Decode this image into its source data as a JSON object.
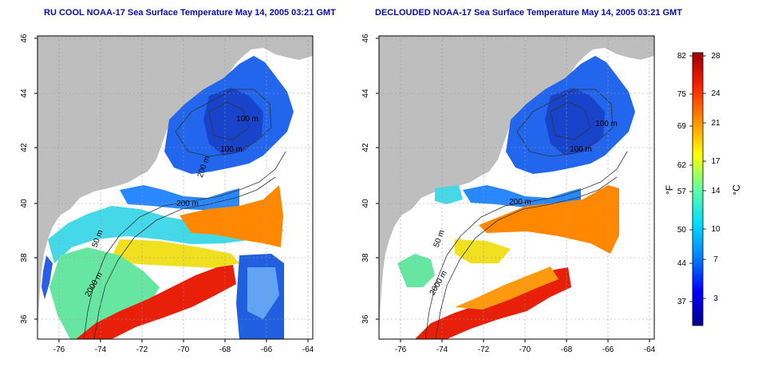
{
  "maps": [
    {
      "title": "RU COOL NOAA-17 Sea Surface Temperature May 14, 2005 03:21 GMT",
      "variant": "raw",
      "contour_labels": [
        "100 m",
        "100 m",
        "200 m",
        "200 m",
        "50 m",
        "2000 m"
      ]
    },
    {
      "title": "DECLOUDED NOAA-17 Sea Surface Temperature May 14, 2005 03:21 GMT",
      "variant": "declouded",
      "contour_labels": [
        "100 m",
        "100 m",
        "200 m",
        "50 m",
        "2000 m"
      ]
    }
  ],
  "axes": {
    "lon_ticks": [
      "-76",
      "-74",
      "-72",
      "-70",
      "-68",
      "-66",
      "-64"
    ],
    "lat_ticks": [
      "36",
      "38",
      "40",
      "42",
      "44",
      "46"
    ]
  },
  "colorbar": {
    "fahrenheit_label": "°F",
    "celsius_label": "°C",
    "fahrenheit_ticks": [
      "82",
      "75",
      "69",
      "62",
      "57",
      "50",
      "44",
      "37"
    ],
    "celsius_ticks": [
      "28",
      "24",
      "21",
      "17",
      "14",
      "10",
      "7",
      "3"
    ],
    "colors": [
      "#00008f",
      "#0000ff",
      "#0080ff",
      "#00e0ff",
      "#60ffa0",
      "#ffff00",
      "#ff9000",
      "#ff2000",
      "#9f0000"
    ]
  }
}
